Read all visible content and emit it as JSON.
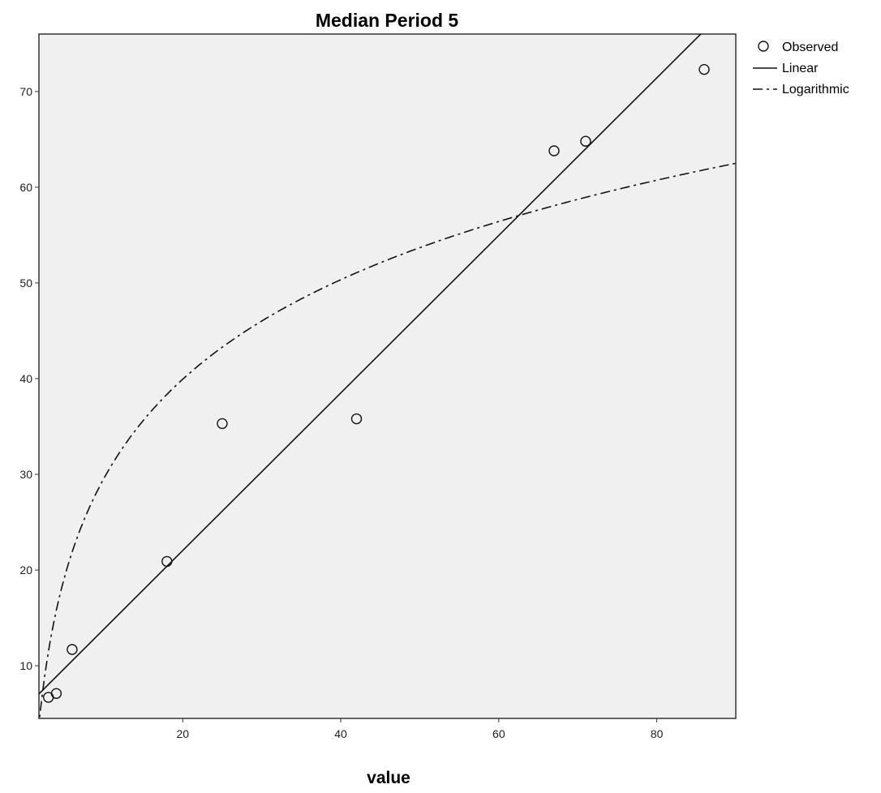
{
  "chart_data": {
    "type": "scatter",
    "title": "Median Period 5",
    "xlabel": "value",
    "ylabel": "",
    "xlim": [
      1.8,
      90
    ],
    "ylim": [
      4.5,
      76
    ],
    "xticks": [
      20,
      40,
      60,
      80
    ],
    "yticks": [
      10,
      20,
      30,
      40,
      50,
      60,
      70
    ],
    "grid": false,
    "legend_position": "right",
    "background": "#f0f0f0",
    "series": [
      {
        "name": "Observed",
        "kind": "points",
        "points": [
          {
            "x": 3,
            "y": 6.7
          },
          {
            "x": 4,
            "y": 7.1
          },
          {
            "x": 6,
            "y": 11.7
          },
          {
            "x": 18,
            "y": 20.9
          },
          {
            "x": 25,
            "y": 35.3
          },
          {
            "x": 42,
            "y": 35.8
          },
          {
            "x": 67,
            "y": 63.8
          },
          {
            "x": 71,
            "y": 64.8
          },
          {
            "x": 86,
            "y": 72.3
          }
        ]
      },
      {
        "name": "Linear",
        "kind": "line",
        "style": "solid",
        "intercept": 5.58,
        "slope": 0.823
      },
      {
        "name": "Logarithmic",
        "kind": "line",
        "style": "dashdot",
        "intercept": -5.0,
        "log_coef": 15.0
      }
    ]
  }
}
